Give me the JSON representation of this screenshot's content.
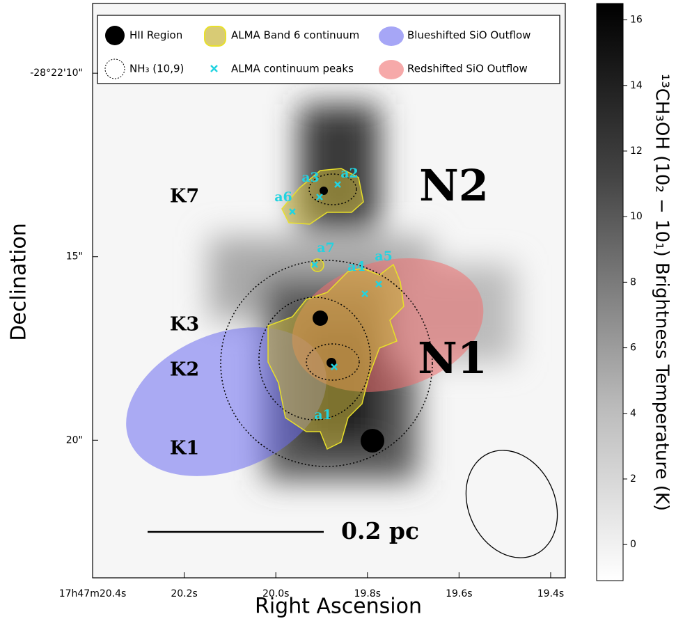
{
  "chart_data": {
    "type": "image",
    "xlabel": "Right Ascension",
    "ylabel": "Declination",
    "xlim": [
      20.4,
      19.368
    ],
    "xticks": [
      {
        "value": 20.4,
        "label": "17h47m20.4s"
      },
      {
        "value": 20.2,
        "label": "20.2s"
      },
      {
        "value": 20.0,
        "label": "20.0s"
      },
      {
        "value": 19.8,
        "label": "19.8s"
      },
      {
        "value": 19.6,
        "label": "19.6s"
      },
      {
        "value": 19.4,
        "label": "19.4s"
      }
    ],
    "ylim": [
      8.1,
      23.75
    ],
    "yticks": [
      {
        "value": 10,
        "label": "-28°22'10\""
      },
      {
        "value": 15,
        "label": "15\""
      },
      {
        "value": 20,
        "label": "20\""
      }
    ],
    "colorbar": {
      "label": "¹³CH₃OH (10₂ − 10₁) Brightness Temperature (K)",
      "ylim": [
        -1.1,
        16.5
      ],
      "yticks": [
        0,
        2,
        4,
        6,
        8,
        10,
        12,
        14,
        16
      ]
    },
    "legend": [
      "HII Region",
      "ALMA Band 6 continuum",
      "Blueshifted SiO Outflow",
      "NH₃ (10,9)",
      "ALMA continuum peaks",
      "Redshifted SiO Outflow"
    ],
    "sources": [
      "K7",
      "K3",
      "K2",
      "K1"
    ],
    "regions": [
      "N2",
      "N1"
    ],
    "peaks": [
      "a1",
      "a2",
      "a3",
      "a4",
      "a5",
      "a6",
      "a7"
    ],
    "scale_bar": "0.2 pc"
  }
}
